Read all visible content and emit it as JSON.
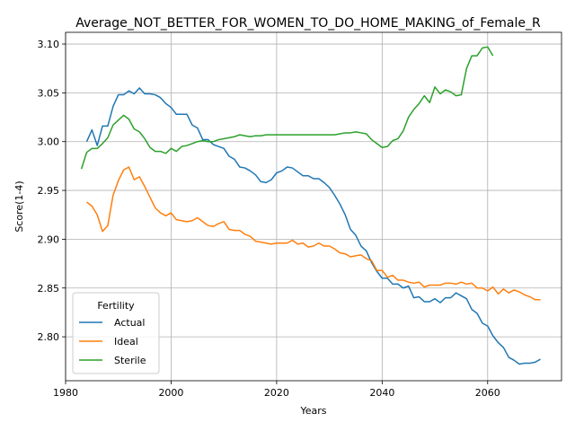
{
  "chart_data": {
    "type": "line",
    "title": "Average_NOT_BETTER_FOR_WOMEN_TO_DO_HOME_MAKING_of_Female_R",
    "xlabel": "Years",
    "ylabel": "Score(1-4)",
    "xlim": [
      1980,
      2074
    ],
    "ylim": [
      2.755,
      3.112
    ],
    "xticks": [
      1980,
      2000,
      2020,
      2040,
      2060
    ],
    "yticks": [
      2.8,
      2.85,
      2.9,
      2.95,
      3.0,
      3.05,
      3.1
    ],
    "xtick_labels": [
      "1980",
      "2000",
      "2020",
      "2040",
      "2060"
    ],
    "ytick_labels": [
      "2.80",
      "2.85",
      "2.90",
      "2.95",
      "3.00",
      "3.05",
      "3.10"
    ],
    "grid": true,
    "legend": {
      "title": "Fertility",
      "placement": "lower left"
    },
    "series": [
      {
        "name": "Actual",
        "color": "#1f77b4",
        "points": [
          [
            1984,
            3.0
          ],
          [
            1985,
            3.012
          ],
          [
            1986,
            2.996
          ],
          [
            1987,
            3.016
          ],
          [
            1988,
            3.016
          ],
          [
            1989,
            3.036
          ],
          [
            1990,
            3.048
          ],
          [
            1991,
            3.048
          ],
          [
            1992,
            3.052
          ],
          [
            1993,
            3.049
          ],
          [
            1994,
            3.055
          ],
          [
            1995,
            3.049
          ],
          [
            1996,
            3.049
          ],
          [
            1997,
            3.048
          ],
          [
            1998,
            3.045
          ],
          [
            1999,
            3.039
          ],
          [
            2000,
            3.035
          ],
          [
            2001,
            3.028
          ],
          [
            2002,
            3.028
          ],
          [
            2003,
            3.028
          ],
          [
            2004,
            3.017
          ],
          [
            2005,
            3.014
          ],
          [
            2006,
            3.002
          ],
          [
            2007,
            3.002
          ],
          [
            2008,
            2.997
          ],
          [
            2009,
            2.995
          ],
          [
            2010,
            2.993
          ],
          [
            2011,
            2.985
          ],
          [
            2012,
            2.982
          ],
          [
            2013,
            2.974
          ],
          [
            2014,
            2.973
          ],
          [
            2015,
            2.97
          ],
          [
            2016,
            2.966
          ],
          [
            2017,
            2.959
          ],
          [
            2018,
            2.958
          ],
          [
            2019,
            2.961
          ],
          [
            2020,
            2.968
          ],
          [
            2021,
            2.97
          ],
          [
            2022,
            2.974
          ],
          [
            2023,
            2.973
          ],
          [
            2024,
            2.969
          ],
          [
            2025,
            2.965
          ],
          [
            2026,
            2.965
          ],
          [
            2027,
            2.962
          ],
          [
            2028,
            2.962
          ],
          [
            2029,
            2.958
          ],
          [
            2030,
            2.953
          ],
          [
            2031,
            2.945
          ],
          [
            2032,
            2.936
          ],
          [
            2033,
            2.925
          ],
          [
            2034,
            2.91
          ],
          [
            2035,
            2.904
          ],
          [
            2036,
            2.893
          ],
          [
            2037,
            2.888
          ],
          [
            2038,
            2.876
          ],
          [
            2039,
            2.867
          ],
          [
            2040,
            2.86
          ],
          [
            2041,
            2.86
          ],
          [
            2042,
            2.854
          ],
          [
            2043,
            2.854
          ],
          [
            2044,
            2.85
          ],
          [
            2045,
            2.852
          ],
          [
            2046,
            2.84
          ],
          [
            2047,
            2.841
          ],
          [
            2048,
            2.836
          ],
          [
            2049,
            2.836
          ],
          [
            2050,
            2.839
          ],
          [
            2051,
            2.835
          ],
          [
            2052,
            2.84
          ],
          [
            2053,
            2.84
          ],
          [
            2054,
            2.845
          ],
          [
            2055,
            2.842
          ],
          [
            2056,
            2.839
          ],
          [
            2057,
            2.828
          ],
          [
            2058,
            2.824
          ],
          [
            2059,
            2.814
          ],
          [
            2060,
            2.811
          ],
          [
            2061,
            2.801
          ],
          [
            2062,
            2.794
          ],
          [
            2063,
            2.789
          ],
          [
            2064,
            2.779
          ],
          [
            2065,
            2.776
          ],
          [
            2066,
            2.772
          ],
          [
            2067,
            2.773
          ],
          [
            2068,
            2.773
          ],
          [
            2069,
            2.774
          ],
          [
            2070,
            2.777
          ]
        ]
      },
      {
        "name": "Ideal",
        "color": "#ff7f0e",
        "points": [
          [
            1984,
            2.938
          ],
          [
            1985,
            2.934
          ],
          [
            1986,
            2.925
          ],
          [
            1987,
            2.908
          ],
          [
            1988,
            2.914
          ],
          [
            1989,
            2.945
          ],
          [
            1990,
            2.96
          ],
          [
            1991,
            2.971
          ],
          [
            1992,
            2.974
          ],
          [
            1993,
            2.961
          ],
          [
            1994,
            2.964
          ],
          [
            1995,
            2.954
          ],
          [
            1996,
            2.943
          ],
          [
            1997,
            2.932
          ],
          [
            1998,
            2.927
          ],
          [
            1999,
            2.924
          ],
          [
            2000,
            2.927
          ],
          [
            2001,
            2.92
          ],
          [
            2002,
            2.919
          ],
          [
            2003,
            2.918
          ],
          [
            2004,
            2.919
          ],
          [
            2005,
            2.922
          ],
          [
            2006,
            2.918
          ],
          [
            2007,
            2.914
          ],
          [
            2008,
            2.913
          ],
          [
            2009,
            2.916
          ],
          [
            2010,
            2.918
          ],
          [
            2011,
            2.91
          ],
          [
            2012,
            2.909
          ],
          [
            2013,
            2.909
          ],
          [
            2014,
            2.905
          ],
          [
            2015,
            2.903
          ],
          [
            2016,
            2.898
          ],
          [
            2017,
            2.897
          ],
          [
            2018,
            2.896
          ],
          [
            2019,
            2.895
          ],
          [
            2020,
            2.896
          ],
          [
            2021,
            2.896
          ],
          [
            2022,
            2.896
          ],
          [
            2023,
            2.899
          ],
          [
            2024,
            2.895
          ],
          [
            2025,
            2.896
          ],
          [
            2026,
            2.892
          ],
          [
            2027,
            2.893
          ],
          [
            2028,
            2.896
          ],
          [
            2029,
            2.893
          ],
          [
            2030,
            2.893
          ],
          [
            2031,
            2.89
          ],
          [
            2032,
            2.886
          ],
          [
            2033,
            2.885
          ],
          [
            2034,
            2.882
          ],
          [
            2035,
            2.883
          ],
          [
            2036,
            2.884
          ],
          [
            2037,
            2.88
          ],
          [
            2038,
            2.878
          ],
          [
            2039,
            2.868
          ],
          [
            2040,
            2.868
          ],
          [
            2041,
            2.861
          ],
          [
            2042,
            2.863
          ],
          [
            2043,
            2.858
          ],
          [
            2044,
            2.858
          ],
          [
            2045,
            2.856
          ],
          [
            2046,
            2.855
          ],
          [
            2047,
            2.856
          ],
          [
            2048,
            2.851
          ],
          [
            2049,
            2.853
          ],
          [
            2050,
            2.853
          ],
          [
            2051,
            2.853
          ],
          [
            2052,
            2.855
          ],
          [
            2053,
            2.855
          ],
          [
            2054,
            2.854
          ],
          [
            2055,
            2.856
          ],
          [
            2056,
            2.854
          ],
          [
            2057,
            2.855
          ],
          [
            2058,
            2.85
          ],
          [
            2059,
            2.85
          ],
          [
            2060,
            2.847
          ],
          [
            2061,
            2.851
          ],
          [
            2062,
            2.844
          ],
          [
            2063,
            2.849
          ],
          [
            2064,
            2.845
          ],
          [
            2065,
            2.848
          ],
          [
            2066,
            2.846
          ],
          [
            2067,
            2.843
          ],
          [
            2068,
            2.841
          ],
          [
            2069,
            2.838
          ],
          [
            2070,
            2.838
          ]
        ]
      },
      {
        "name": "Sterile",
        "color": "#2ca02c",
        "points": [
          [
            1983,
            2.972
          ],
          [
            1984,
            2.989
          ],
          [
            1985,
            2.993
          ],
          [
            1986,
            2.993
          ],
          [
            1987,
            2.998
          ],
          [
            1988,
            3.004
          ],
          [
            1989,
            3.017
          ],
          [
            1990,
            3.022
          ],
          [
            1991,
            3.027
          ],
          [
            1992,
            3.023
          ],
          [
            1993,
            3.013
          ],
          [
            1994,
            3.01
          ],
          [
            1995,
            3.003
          ],
          [
            1996,
            2.994
          ],
          [
            1997,
            2.99
          ],
          [
            1998,
            2.99
          ],
          [
            1999,
            2.988
          ],
          [
            2000,
            2.993
          ],
          [
            2001,
            2.99
          ],
          [
            2002,
            2.995
          ],
          [
            2003,
            2.996
          ],
          [
            2004,
            2.998
          ],
          [
            2005,
            3.0
          ],
          [
            2006,
            3.001
          ],
          [
            2007,
            3.0
          ],
          [
            2008,
            3.0
          ],
          [
            2009,
            3.002
          ],
          [
            2010,
            3.003
          ],
          [
            2011,
            3.004
          ],
          [
            2012,
            3.005
          ],
          [
            2013,
            3.007
          ],
          [
            2014,
            3.006
          ],
          [
            2015,
            3.005
          ],
          [
            2016,
            3.006
          ],
          [
            2017,
            3.006
          ],
          [
            2018,
            3.007
          ],
          [
            2020,
            3.007
          ],
          [
            2025,
            3.007
          ],
          [
            2030,
            3.007
          ],
          [
            2031,
            3.007
          ],
          [
            2032,
            3.008
          ],
          [
            2033,
            3.009
          ],
          [
            2034,
            3.009
          ],
          [
            2035,
            3.01
          ],
          [
            2036,
            3.009
          ],
          [
            2037,
            3.008
          ],
          [
            2038,
            3.002
          ],
          [
            2039,
            2.998
          ],
          [
            2040,
            2.994
          ],
          [
            2041,
            2.995
          ],
          [
            2042,
            3.001
          ],
          [
            2043,
            3.003
          ],
          [
            2044,
            3.011
          ],
          [
            2045,
            3.025
          ],
          [
            2046,
            3.033
          ],
          [
            2047,
            3.039
          ],
          [
            2048,
            3.047
          ],
          [
            2049,
            3.04
          ],
          [
            2050,
            3.056
          ],
          [
            2051,
            3.049
          ],
          [
            2052,
            3.053
          ],
          [
            2053,
            3.051
          ],
          [
            2054,
            3.047
          ],
          [
            2055,
            3.048
          ],
          [
            2056,
            3.075
          ],
          [
            2057,
            3.088
          ],
          [
            2058,
            3.088
          ],
          [
            2059,
            3.096
          ],
          [
            2060,
            3.097
          ],
          [
            2061,
            3.088
          ]
        ]
      }
    ]
  }
}
